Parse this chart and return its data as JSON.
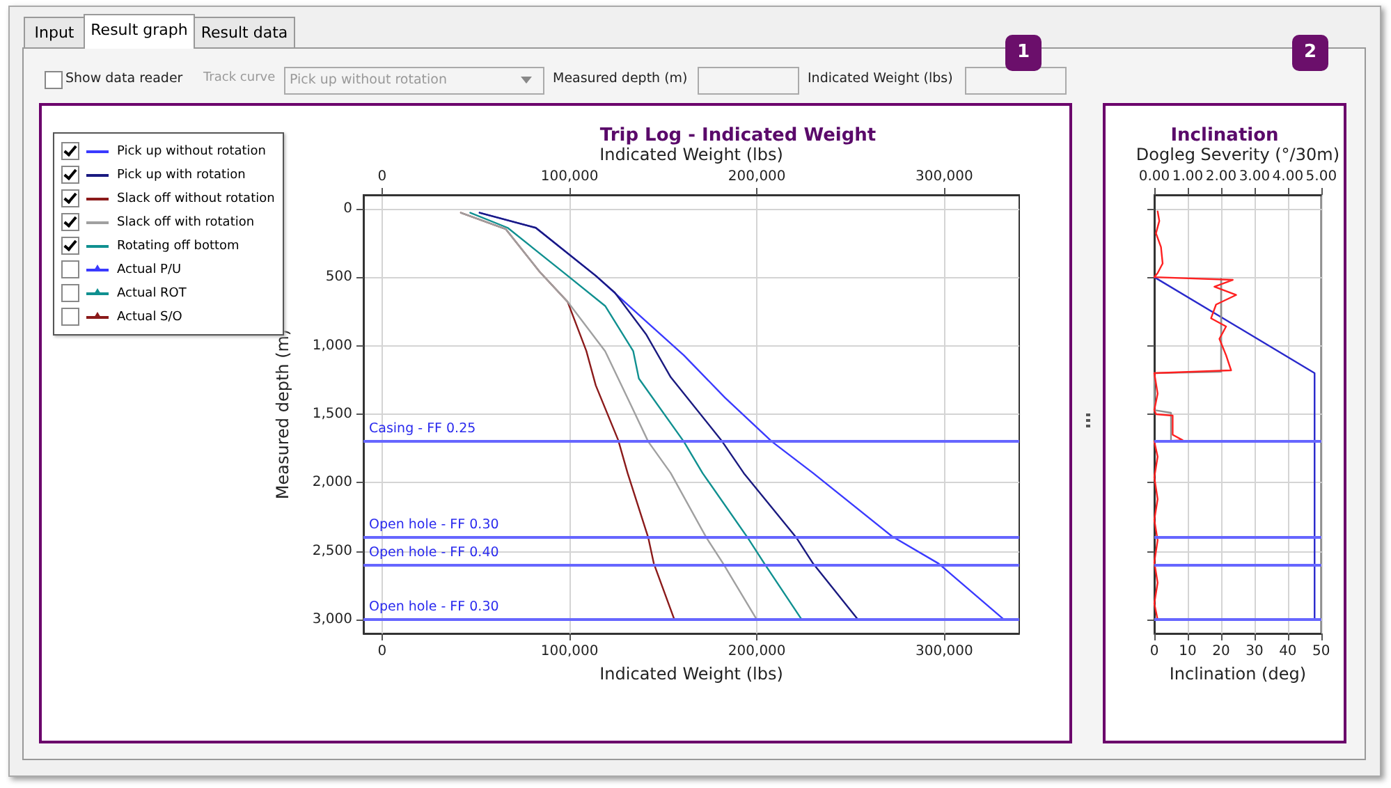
{
  "chart_data": [
    {
      "type": "other",
      "annotations": [
        "Input",
        "Result graph",
        "Result data",
        "Show data reader",
        "Track curve",
        "Pick up without rotation",
        "Measured depth (m)",
        "Indicated Weight (lbs)",
        "1",
        "2"
      ]
    },
    {
      "type": "line",
      "title": "Trip Log - Indicated Weight",
      "xlabel": "Indicated Weight (lbs)",
      "x2label": "Indicated Weight (lbs)",
      "ylabel": "Measured depth (m)",
      "xlim": [
        -10000,
        340000
      ],
      "xticks": [
        {
          "value": 0,
          "label": "0"
        },
        {
          "value": 100000,
          "label": "100,000"
        },
        {
          "value": 200000,
          "label": "200,000"
        },
        {
          "value": 300000,
          "label": "300,000"
        }
      ],
      "x2lim": [
        -10000,
        340000
      ],
      "x2ticks": [
        {
          "value": 0,
          "label": "0"
        },
        {
          "value": 100000,
          "label": "100,000"
        },
        {
          "value": 200000,
          "label": "200,000"
        },
        {
          "value": 300000,
          "label": "300,000"
        }
      ],
      "ylim": [
        3100,
        -100
      ],
      "yticks": [
        0,
        500,
        {
          "value": 1000,
          "label": "1,000"
        },
        {
          "value": 1500,
          "label": "1,500"
        },
        {
          "value": 2000,
          "label": "2,000"
        },
        {
          "value": 2500,
          "label": "2,500"
        },
        {
          "value": 3000,
          "label": "3,000"
        }
      ],
      "grid": true,
      "legend": "top left",
      "marker": "none",
      "line_style": "solid",
      "series": [
        {
          "name": "Pick up without rotation",
          "color": "#3a3aff",
          "x": [
            52000,
            82000,
            114000,
            139000,
            161000,
            183000,
            208000,
            230000,
            272000,
            297000,
            332000
          ],
          "values": [
            30,
            140,
            490,
            800,
            1070,
            1380,
            1700,
            1930,
            2390,
            2590,
            3000
          ]
        },
        {
          "name": "Pick up with rotation",
          "color": "#1a1a80",
          "x": [
            52000,
            82000,
            114000,
            124000,
            141000,
            154000,
            181000,
            193000,
            221000,
            230000,
            254000
          ],
          "values": [
            30,
            140,
            490,
            610,
            920,
            1230,
            1690,
            1930,
            2400,
            2590,
            3000
          ]
        },
        {
          "name": "Slack off without rotation",
          "color": "#8b1a1a",
          "x": [
            42000,
            66000,
            84000,
            99000,
            109000,
            114000,
            126000,
            131000,
            142000,
            145000,
            156000
          ],
          "values": [
            30,
            150,
            460,
            680,
            1040,
            1290,
            1690,
            1930,
            2400,
            2590,
            3000
          ]
        },
        {
          "name": "Slack off with rotation",
          "color": "#a0a0a0",
          "x": [
            42000,
            66000,
            84000,
            99000,
            119000,
            133000,
            142000,
            154000,
            173000,
            182000,
            200000
          ],
          "values": [
            30,
            150,
            460,
            680,
            1040,
            1440,
            1700,
            1930,
            2400,
            2590,
            3000
          ]
        },
        {
          "name": "Rotating off bottom",
          "color": "#109090",
          "x": [
            47000,
            67000,
            99000,
            119000,
            134000,
            137000,
            161000,
            171000,
            195000,
            204000,
            224000
          ],
          "values": [
            30,
            140,
            490,
            710,
            1040,
            1240,
            1700,
            1930,
            2400,
            2590,
            3000
          ]
        },
        {
          "name": "Actual P/U",
          "color": "#3a3aff",
          "marker": "triangle",
          "x": [
            null
          ],
          "values": [
            null
          ]
        },
        {
          "name": "Actual ROT",
          "color": "#109090",
          "marker": "triangle",
          "x": [
            null
          ],
          "values": [
            null
          ]
        },
        {
          "name": "Actual S/O",
          "color": "#8b1a1a",
          "marker": "triangle",
          "x": [
            null
          ],
          "values": [
            null
          ]
        }
      ],
      "ref_lines": [
        {
          "axis": "y",
          "value": 1700,
          "label": "Casing - FF 0.25",
          "color": "#6666ff"
        },
        {
          "axis": "y",
          "value": 2400,
          "label": "Open hole - FF 0.30",
          "color": "#6666ff"
        },
        {
          "axis": "y",
          "value": 2600,
          "label": "Open hole - FF 0.40",
          "color": "#6666ff"
        },
        {
          "axis": "y",
          "value": 3000,
          "label": "Open hole - FF 0.30",
          "color": "#6666ff"
        }
      ]
    },
    {
      "type": "line",
      "title": "Inclination",
      "xlabel": "Inclination (deg)",
      "x2label": "Dogleg Severity (°/30m)",
      "xlim": [
        0,
        50
      ],
      "xticks": [
        0,
        10,
        20,
        30,
        40,
        50
      ],
      "x2lim": [
        0,
        5
      ],
      "x2ticks": [
        {
          "value": 0,
          "label": "0.00"
        },
        {
          "value": 1,
          "label": "1.00"
        },
        {
          "value": 2,
          "label": "2.00"
        },
        {
          "value": 3,
          "label": "3.00"
        },
        {
          "value": 4,
          "label": "4.00"
        },
        {
          "value": 5,
          "label": "5.00"
        }
      ],
      "ylim": [
        3100,
        -100
      ],
      "yticks": [
        {
          "value": 0,
          "label": null
        },
        {
          "value": 500,
          "label": null
        },
        {
          "value": 1000,
          "label": null
        },
        {
          "value": 1500,
          "label": null
        },
        {
          "value": 2000,
          "label": null
        },
        {
          "value": 2500,
          "label": null
        },
        {
          "value": 3000,
          "label": null
        }
      ],
      "tick_labels": "x",
      "grid": true,
      "marker": "none",
      "line_style": "solid",
      "series": [
        {
          "color": "#2a2acc",
          "x": [
            0,
            48,
            48
          ],
          "values": [
            500,
            1200,
            3000
          ]
        },
        {
          "color": "#909090",
          "axis": "x2",
          "x": [
            2,
            2,
            0,
            0,
            0.5,
            0.5
          ],
          "values": [
            510,
            1190,
            1200,
            1470,
            1490,
            1690
          ]
        },
        {
          "color": "#ff2020",
          "axis": "x2",
          "x": [
            0.1,
            0.15,
            0.05,
            0.2,
            0.25,
            0.1,
            0,
            2.35,
            1.8,
            2.45,
            1.85,
            1.7,
            2.15,
            1.95,
            2.15,
            2.3,
            0,
            0.1,
            0,
            0.05,
            0.55,
            0.55,
            0.85,
            0,
            0.1,
            0,
            0.1,
            0,
            0.1,
            0,
            0.1,
            0,
            0.1
          ],
          "values": [
            20,
            90,
            180,
            280,
            400,
            470,
            500,
            520,
            570,
            630,
            700,
            800,
            860,
            950,
            1070,
            1180,
            1200,
            1350,
            1470,
            1500,
            1510,
            1650,
            1690,
            1700,
            1810,
            1960,
            2120,
            2270,
            2420,
            2580,
            2730,
            2880,
            3000
          ]
        }
      ],
      "ref_lines": [
        {
          "axis": "y",
          "value": 1700,
          "color": "#6666ff"
        },
        {
          "axis": "y",
          "value": 2400,
          "color": "#6666ff"
        },
        {
          "axis": "y",
          "value": 2600,
          "color": "#6666ff"
        },
        {
          "axis": "y",
          "value": 3000,
          "color": "#6666ff"
        }
      ]
    }
  ]
}
